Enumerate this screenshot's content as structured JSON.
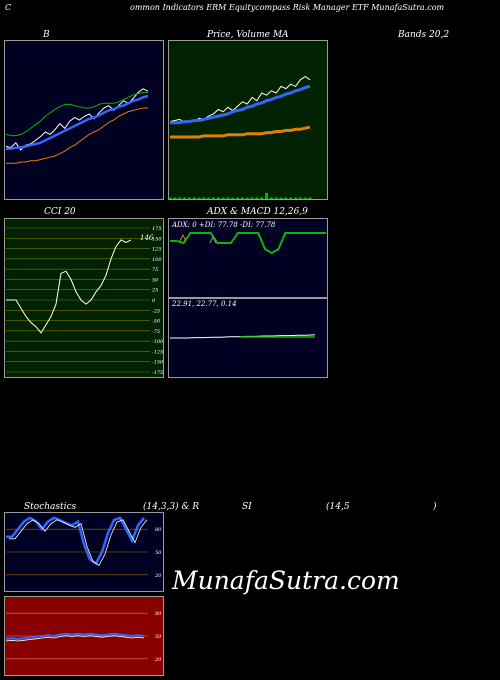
{
  "header": {
    "c": "C",
    "title": "ommon  Indicators ERM Equitycompass Risk Manager ETF MunafaSutra.com"
  },
  "labels": {
    "bb": "B",
    "price_ma": "Price,  Volume  MA",
    "bands": "Bands 20,2",
    "cci": "CCI 20",
    "adx_macd": "ADX  & MACD 12,26,9",
    "stoch": "Stochastics",
    "stoch_params": "(14,3,3) & R",
    "si": "SI",
    "rsi_params": "(14,5",
    "close_paren": ")"
  },
  "watermark": "MunafaSutra.com",
  "colors": {
    "bb_bg": "#000022",
    "price_bg": "#002200",
    "cci_bg": "#002200",
    "adx_bg": "#000022",
    "stoch_bg": "#000022",
    "rsi_bg": "#880000",
    "blue": "#3366ff",
    "orange": "#e08000",
    "green": "#00bb00",
    "white": "#ffffff"
  },
  "chart_data": [
    {
      "type": "line",
      "panel": "bollinger-bands",
      "label": "B",
      "series": [
        {
          "role": "price",
          "values": [
            0.28,
            0.27,
            0.31,
            0.25,
            0.29,
            0.3,
            0.33,
            0.36,
            0.4,
            0.38,
            0.42,
            0.47,
            0.43,
            0.49,
            0.52,
            0.5,
            0.53,
            0.55,
            0.51,
            0.56,
            0.6,
            0.62,
            0.58,
            0.62,
            0.66,
            0.64,
            0.68,
            0.73,
            0.76,
            0.74
          ]
        },
        {
          "role": "upper",
          "values": [
            0.38,
            0.37,
            0.37,
            0.38,
            0.4,
            0.43,
            0.46,
            0.49,
            0.53,
            0.56,
            0.59,
            0.61,
            0.63,
            0.63,
            0.62,
            0.61,
            0.6,
            0.6,
            0.61,
            0.63,
            0.64,
            0.64,
            0.64,
            0.65,
            0.67,
            0.69,
            0.71,
            0.72,
            0.73,
            0.73
          ]
        },
        {
          "role": "middle",
          "values": [
            0.26,
            0.26,
            0.27,
            0.27,
            0.28,
            0.29,
            0.3,
            0.31,
            0.33,
            0.35,
            0.37,
            0.39,
            0.41,
            0.43,
            0.45,
            0.47,
            0.49,
            0.51,
            0.52,
            0.54,
            0.56,
            0.58,
            0.59,
            0.61,
            0.62,
            0.64,
            0.66,
            0.67,
            0.69,
            0.7
          ]
        },
        {
          "role": "lower",
          "values": [
            0.14,
            0.14,
            0.14,
            0.15,
            0.15,
            0.16,
            0.16,
            0.17,
            0.18,
            0.19,
            0.2,
            0.22,
            0.24,
            0.27,
            0.29,
            0.32,
            0.35,
            0.38,
            0.4,
            0.42,
            0.45,
            0.48,
            0.5,
            0.53,
            0.55,
            0.57,
            0.58,
            0.59,
            0.6,
            0.6
          ]
        }
      ]
    },
    {
      "type": "line",
      "panel": "price-volume-ma",
      "label": "Price, Volume MA",
      "series": [
        {
          "role": "price",
          "values": [
            0.44,
            0.45,
            0.46,
            0.43,
            0.45,
            0.44,
            0.47,
            0.46,
            0.49,
            0.51,
            0.55,
            0.53,
            0.57,
            0.54,
            0.58,
            0.62,
            0.6,
            0.66,
            0.63,
            0.7,
            0.68,
            0.72,
            0.7,
            0.76,
            0.74,
            0.78,
            0.76,
            0.82,
            0.85,
            0.82
          ]
        },
        {
          "role": "ma-blue",
          "values": [
            0.43,
            0.43,
            0.43,
            0.44,
            0.44,
            0.45,
            0.45,
            0.46,
            0.47,
            0.48,
            0.49,
            0.5,
            0.51,
            0.53,
            0.54,
            0.55,
            0.57,
            0.58,
            0.6,
            0.61,
            0.63,
            0.64,
            0.66,
            0.67,
            0.69,
            0.7,
            0.72,
            0.73,
            0.75,
            0.76
          ]
        },
        {
          "role": "ma-orange",
          "values": [
            0.3,
            0.3,
            0.3,
            0.3,
            0.3,
            0.3,
            0.3,
            0.31,
            0.31,
            0.31,
            0.31,
            0.31,
            0.32,
            0.32,
            0.32,
            0.32,
            0.33,
            0.33,
            0.33,
            0.33,
            0.34,
            0.34,
            0.35,
            0.35,
            0.36,
            0.36,
            0.37,
            0.37,
            0.38,
            0.39
          ]
        }
      ],
      "volume": [
        0,
        0,
        0,
        0,
        0,
        0,
        0,
        0,
        0,
        0,
        0,
        0,
        0,
        0,
        0,
        0,
        0,
        0,
        0,
        0,
        1,
        0,
        0,
        0,
        0,
        0,
        0,
        0,
        0,
        0
      ]
    },
    {
      "type": "line",
      "panel": "cci",
      "label": "CCI 20",
      "value_label": "146",
      "ytick_labels": [
        "175",
        "150",
        "125",
        "100",
        "75",
        "50",
        "25",
        "0",
        "-25",
        "-50",
        "-75",
        "-100",
        "-125",
        "-150",
        "-175"
      ],
      "ylim": [
        -175,
        175
      ],
      "values": [
        0,
        0,
        0,
        -20,
        -40,
        -55,
        -65,
        -80,
        -60,
        -40,
        -10,
        65,
        70,
        50,
        20,
        0,
        -10,
        0,
        20,
        35,
        60,
        100,
        130,
        146,
        140,
        146
      ]
    },
    {
      "type": "line",
      "panel": "adx",
      "label": "ADX & MACD 12,26,9",
      "readout": {
        "adx": "ADX: 0",
        "plus_di": "+DI: 77.78",
        "minus_di": "-DI: 77.78"
      },
      "values": [
        0.6,
        0.6,
        0.55,
        0.8,
        0.8,
        0.8,
        0.8,
        0.55,
        0.55,
        0.55,
        0.8,
        0.8,
        0.8,
        0.8,
        0.4,
        0.3,
        0.4,
        0.8,
        0.8,
        0.8,
        0.8,
        0.8,
        0.8,
        0.8
      ]
    },
    {
      "type": "line",
      "panel": "macd",
      "readout": {
        "macd": "22.91",
        "signal": "22.77",
        "hist": "0.14"
      },
      "values": [
        0.5,
        0.5,
        0.5,
        0.51,
        0.51,
        0.52,
        0.52,
        0.53,
        0.53,
        0.54,
        0.54,
        0.55,
        0.55,
        0.56,
        0.56,
        0.57,
        0.57,
        0.58
      ]
    },
    {
      "type": "line",
      "panel": "stochastics",
      "label": "Stochastics (14,3,3)",
      "ytick_labels": [
        "80",
        "50",
        "20"
      ],
      "ylim": [
        0,
        100
      ],
      "values": [
        70,
        70,
        80,
        90,
        95,
        90,
        80,
        90,
        95,
        92,
        88,
        85,
        90,
        60,
        40,
        35,
        50,
        75,
        92,
        95,
        80,
        65,
        85,
        95
      ]
    },
    {
      "type": "line",
      "panel": "rsi",
      "label": "RSI (14,5)",
      "ytick_labels": [
        "80",
        "50",
        "20"
      ],
      "ylim": [
        0,
        100
      ],
      "values": [
        46,
        47,
        46,
        47,
        48,
        49,
        50,
        51,
        50,
        52,
        53,
        52,
        53,
        52,
        53,
        52,
        51,
        52,
        53,
        52,
        51,
        50,
        51,
        50
      ]
    }
  ]
}
